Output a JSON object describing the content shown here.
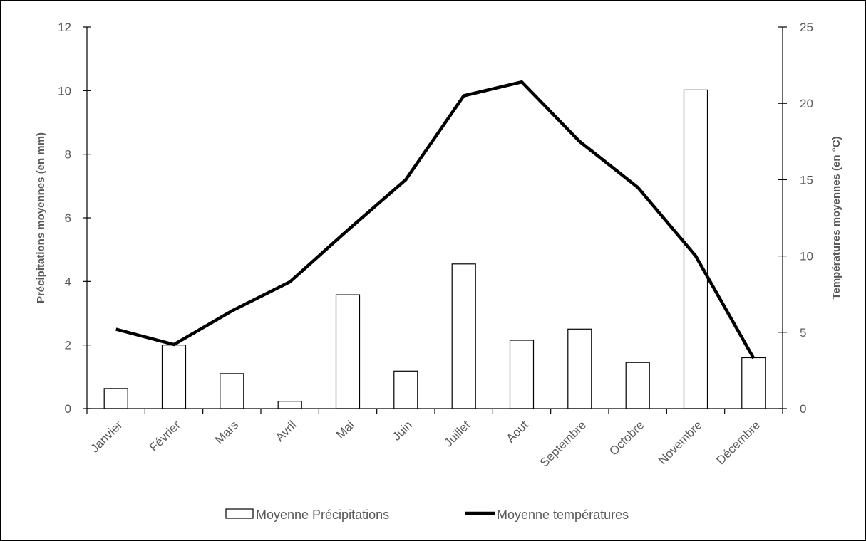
{
  "chart_data": {
    "type": "bar+line",
    "categories": [
      "Janvier",
      "Février",
      "Mars",
      "Avril",
      "Mai",
      "Juin",
      "Juillet",
      "Aout",
      "Septembre",
      "Octobre",
      "Novembre",
      "Décembre"
    ],
    "series": [
      {
        "name": "Moyenne Précipitations",
        "type": "bar",
        "axis": "left",
        "values": [
          0.63,
          2.0,
          1.1,
          0.23,
          3.58,
          1.18,
          4.55,
          2.15,
          2.5,
          1.45,
          10.02,
          1.6
        ]
      },
      {
        "name": "Moyenne températures",
        "type": "line",
        "axis": "right",
        "values": [
          5.2,
          4.2,
          6.4,
          8.3,
          11.7,
          15.0,
          20.5,
          21.4,
          17.5,
          14.5,
          10.0,
          3.3
        ]
      }
    ],
    "ylabel_left": "Précipitations moyennes (en mm)",
    "ylabel_right": "Températures moyennes (en °C)",
    "ylim_left": [
      0,
      12
    ],
    "ylim_right": [
      0,
      25
    ],
    "yticks_left": [
      0,
      2,
      4,
      6,
      8,
      10,
      12
    ],
    "yticks_right": [
      0,
      5,
      10,
      15,
      20,
      25
    ],
    "grid": false,
    "legend_position": "bottom",
    "colors": {
      "bar_fill": "#ffffff",
      "bar_stroke": "#000000",
      "line": "#000000",
      "axis": "#000000",
      "text": "#595959"
    }
  }
}
